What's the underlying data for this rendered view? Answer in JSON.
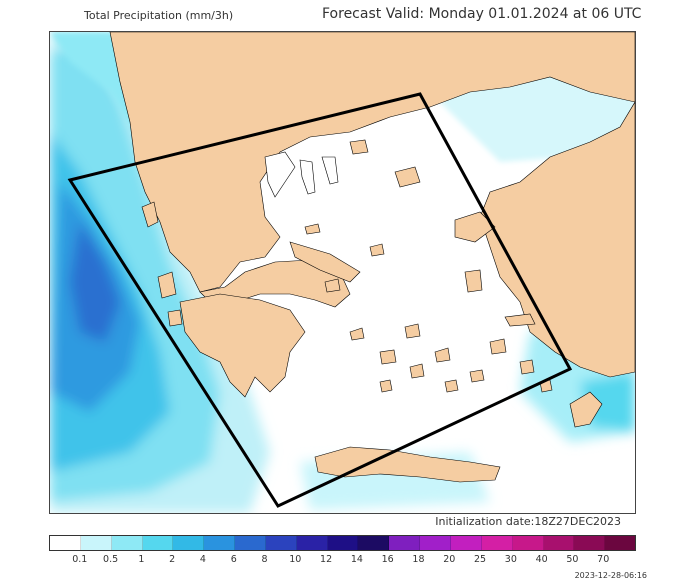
{
  "header": {
    "title_left": "Total Precipitation (mm/3h)",
    "title_right": "Forecast Valid:  Monday 01.01.2024 at 06 UTC"
  },
  "init_text": "Initialization date:18Z27DEC2023",
  "stamp": "2023-12-28-06:16",
  "legend": {
    "labels": [
      "0.1",
      "0.5",
      "1",
      "2",
      "4",
      "6",
      "8",
      "10",
      "12",
      "14",
      "16",
      "18",
      "20",
      "25",
      "30",
      "40",
      "50",
      "70"
    ],
    "colors": [
      "#ffffff",
      "#c9f5fb",
      "#8ee9f5",
      "#55d7ee",
      "#32b9e6",
      "#2a93df",
      "#2a69cf",
      "#2b43be",
      "#2a22a6",
      "#1e0f86",
      "#1c0b63",
      "#7f1fbf",
      "#a11fc9",
      "#c21fbf",
      "#d41fa5",
      "#c7188a",
      "#a8106e",
      "#8a0a55",
      "#6b063f"
    ],
    "land_color": "#f5cda2",
    "box_color": "#000000"
  }
}
